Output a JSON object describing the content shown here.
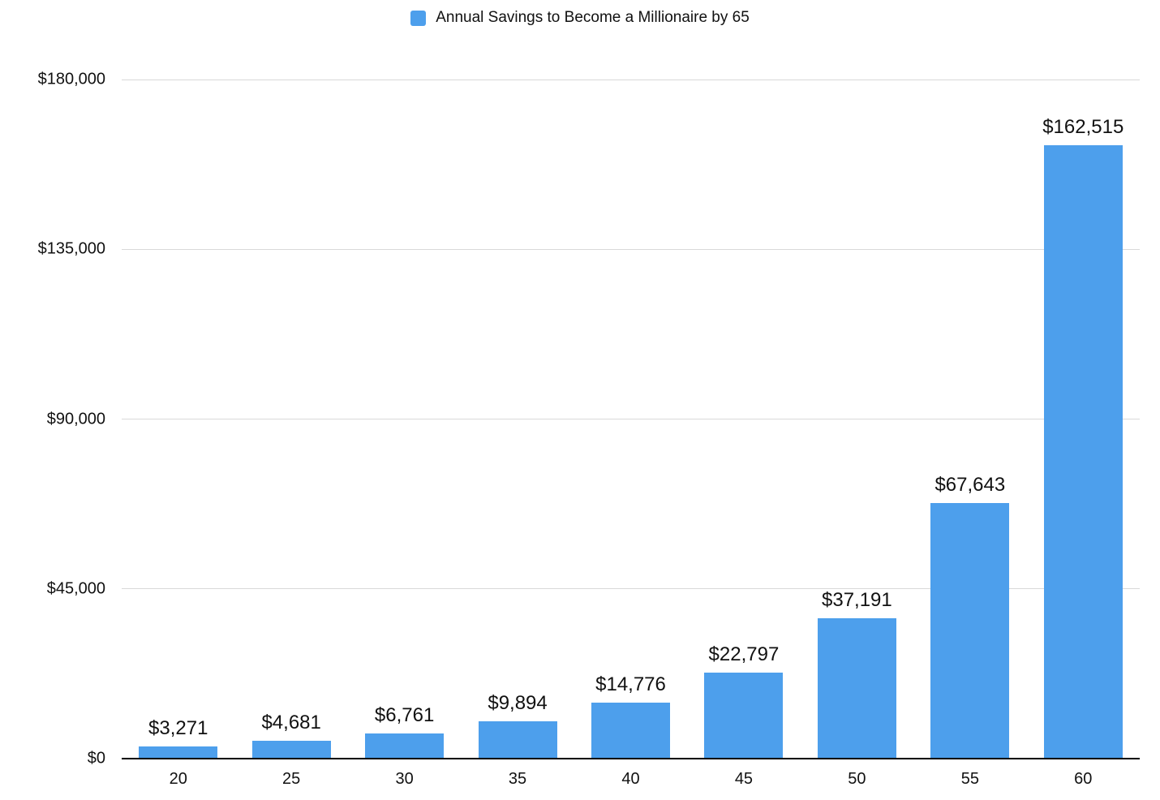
{
  "chart_data": {
    "type": "bar",
    "title": "Annual Savings to Become a Millionaire by 65",
    "categories": [
      "20",
      "25",
      "30",
      "35",
      "40",
      "45",
      "50",
      "55",
      "60"
    ],
    "values": [
      3271,
      4681,
      6761,
      9894,
      14776,
      22797,
      37191,
      67643,
      162515
    ],
    "value_labels": [
      "$3,271",
      "$4,681",
      "$6,761",
      "$9,894",
      "$14,776",
      "$22,797",
      "$37,191",
      "$67,643",
      "$162,515"
    ],
    "xlabel": "",
    "ylabel": "",
    "ylim": [
      0,
      180000
    ],
    "y_ticks": [
      0,
      45000,
      90000,
      135000,
      180000
    ],
    "y_tick_labels": [
      "$0",
      "$45,000",
      "$90,000",
      "$135,000",
      "$180,000"
    ],
    "grid": true,
    "legend_position": "top",
    "colors": {
      "bar": "#4d9fec",
      "gridline": "#d9d9d9",
      "axis": "#000000",
      "text": "#111111",
      "background": "#ffffff"
    }
  }
}
